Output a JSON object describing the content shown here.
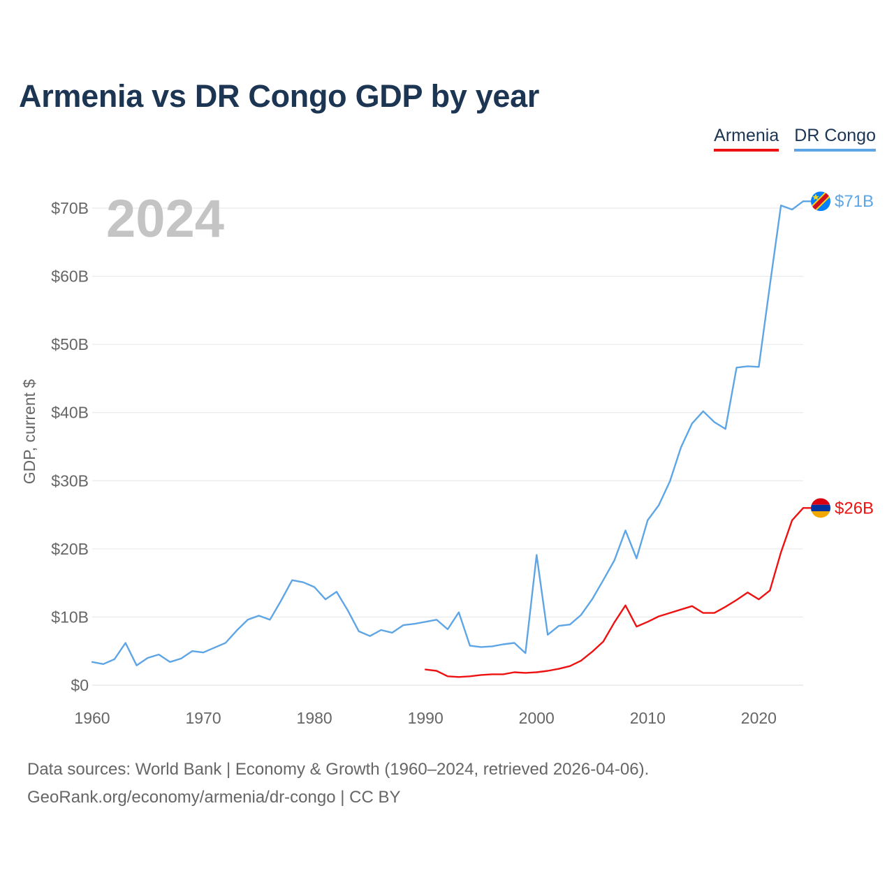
{
  "chart_data": {
    "type": "line",
    "title": "Armenia vs DR Congo GDP by year",
    "ylabel": "GDP, current $",
    "xlabel": "",
    "year_label": "2024",
    "xlim": [
      1960,
      2024
    ],
    "ylim": [
      0,
      70
    ],
    "x_ticks": [
      1960,
      1970,
      1980,
      1990,
      2000,
      2010,
      2020
    ],
    "y_ticks": [
      {
        "value": 0,
        "label": "$0"
      },
      {
        "value": 10,
        "label": "$10B"
      },
      {
        "value": 20,
        "label": "$20B"
      },
      {
        "value": 30,
        "label": "$30B"
      },
      {
        "value": 40,
        "label": "$40B"
      },
      {
        "value": 50,
        "label": "$50B"
      },
      {
        "value": 60,
        "label": "$60B"
      },
      {
        "value": 70,
        "label": "$70B"
      }
    ],
    "grid": true,
    "legend_position": "top-right",
    "series": [
      {
        "name": "Armenia",
        "color": "#ee1111",
        "end_label": "$26B",
        "x": [
          1990,
          1991,
          1992,
          1993,
          1994,
          1995,
          1996,
          1997,
          1998,
          1999,
          2000,
          2001,
          2002,
          2003,
          2004,
          2005,
          2006,
          2007,
          2008,
          2009,
          2010,
          2011,
          2012,
          2013,
          2014,
          2015,
          2016,
          2017,
          2018,
          2019,
          2020,
          2021,
          2022,
          2023,
          2024
        ],
        "values": [
          2.3,
          2.1,
          1.3,
          1.2,
          1.3,
          1.5,
          1.6,
          1.6,
          1.9,
          1.8,
          1.9,
          2.1,
          2.4,
          2.8,
          3.6,
          4.9,
          6.4,
          9.2,
          11.7,
          8.6,
          9.3,
          10.1,
          10.6,
          11.1,
          11.6,
          10.6,
          10.6,
          11.5,
          12.5,
          13.6,
          12.6,
          13.9,
          19.5,
          24.2,
          26.0
        ]
      },
      {
        "name": "DR Congo",
        "color": "#5ea5e6",
        "end_label": "$71B",
        "x": [
          1960,
          1961,
          1962,
          1963,
          1964,
          1965,
          1966,
          1967,
          1968,
          1969,
          1970,
          1971,
          1972,
          1973,
          1974,
          1975,
          1976,
          1977,
          1978,
          1979,
          1980,
          1981,
          1982,
          1983,
          1984,
          1985,
          1986,
          1987,
          1988,
          1989,
          1990,
          1991,
          1992,
          1993,
          1994,
          1995,
          1996,
          1997,
          1998,
          1999,
          2000,
          2001,
          2002,
          2003,
          2004,
          2005,
          2006,
          2007,
          2008,
          2009,
          2010,
          2011,
          2012,
          2013,
          2014,
          2015,
          2016,
          2017,
          2018,
          2019,
          2020,
          2021,
          2022,
          2023,
          2024
        ],
        "values": [
          3.4,
          3.1,
          3.8,
          6.2,
          2.9,
          4.0,
          4.5,
          3.4,
          3.9,
          5.0,
          4.8,
          5.5,
          6.2,
          8.0,
          9.6,
          10.2,
          9.6,
          12.4,
          15.4,
          15.1,
          14.4,
          12.6,
          13.7,
          11.0,
          7.9,
          7.2,
          8.1,
          7.7,
          8.8,
          9.0,
          9.3,
          9.6,
          8.2,
          10.7,
          5.8,
          5.6,
          5.7,
          6.0,
          6.2,
          4.7,
          19.1,
          7.4,
          8.7,
          8.9,
          10.3,
          12.6,
          15.4,
          18.3,
          22.7,
          18.6,
          24.2,
          26.4,
          29.9,
          34.9,
          38.4,
          40.2,
          38.6,
          37.6,
          46.6,
          46.8,
          46.7,
          58.7,
          70.4,
          69.8,
          71.0
        ]
      }
    ]
  },
  "footer": {
    "line1": "Data sources: World Bank | Economy & Growth (1960–2024, retrieved 2026-04-06).",
    "line2": "GeoRank.org/economy/armenia/dr-congo | CC BY"
  }
}
